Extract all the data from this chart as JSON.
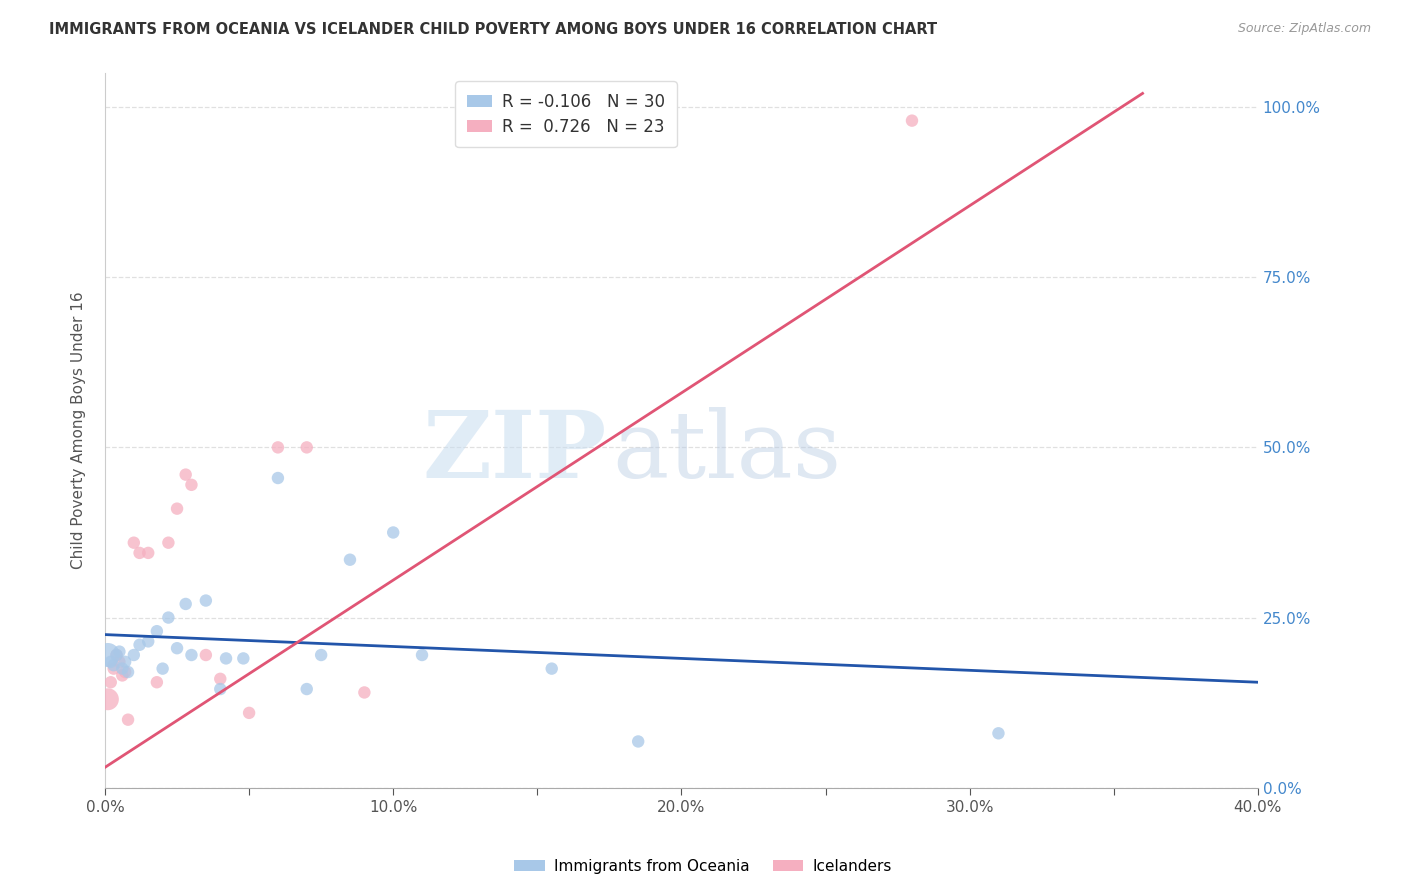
{
  "title": "IMMIGRANTS FROM OCEANIA VS ICELANDER CHILD POVERTY AMONG BOYS UNDER 16 CORRELATION CHART",
  "source": "Source: ZipAtlas.com",
  "ylabel": "Child Poverty Among Boys Under 16",
  "xlim": [
    0.0,
    0.4
  ],
  "ylim": [
    0.0,
    1.05
  ],
  "xtick_vals": [
    0.0,
    0.05,
    0.1,
    0.15,
    0.2,
    0.25,
    0.3,
    0.35,
    0.4
  ],
  "xtick_major_vals": [
    0.0,
    0.1,
    0.2,
    0.3,
    0.4
  ],
  "xtick_labels": [
    "0.0%",
    "",
    "10.0%",
    "",
    "20.0%",
    "",
    "30.0%",
    "",
    "40.0%"
  ],
  "ytick_vals": [
    0.0,
    0.25,
    0.5,
    0.75,
    1.0
  ],
  "ytick_labels_right": [
    "0.0%",
    "25.0%",
    "50.0%",
    "75.0%",
    "100.0%"
  ],
  "grid_color": "#e0e0e0",
  "background_color": "#ffffff",
  "blue_color": "#a8c8e8",
  "pink_color": "#f5afc0",
  "blue_line_color": "#2255aa",
  "pink_line_color": "#e05575",
  "R_blue": -0.106,
  "N_blue": 30,
  "R_pink": 0.726,
  "N_pink": 23,
  "watermark_zip": "ZIP",
  "watermark_atlas": "atlas",
  "legend_label_blue": "Immigrants from Oceania",
  "legend_label_pink": "Icelanders",
  "blue_scatter_x": [
    0.001,
    0.002,
    0.003,
    0.004,
    0.005,
    0.006,
    0.007,
    0.008,
    0.01,
    0.012,
    0.015,
    0.018,
    0.02,
    0.022,
    0.025,
    0.028,
    0.03,
    0.035,
    0.04,
    0.042,
    0.048,
    0.06,
    0.07,
    0.075,
    0.085,
    0.1,
    0.11,
    0.155,
    0.185,
    0.31
  ],
  "blue_scatter_y": [
    0.195,
    0.185,
    0.18,
    0.195,
    0.2,
    0.175,
    0.185,
    0.17,
    0.195,
    0.21,
    0.215,
    0.23,
    0.175,
    0.25,
    0.205,
    0.27,
    0.195,
    0.275,
    0.145,
    0.19,
    0.19,
    0.455,
    0.145,
    0.195,
    0.335,
    0.375,
    0.195,
    0.175,
    0.068,
    0.08
  ],
  "blue_scatter_size": [
    300,
    80,
    80,
    80,
    80,
    80,
    80,
    80,
    80,
    80,
    80,
    80,
    80,
    80,
    80,
    80,
    80,
    80,
    80,
    80,
    80,
    80,
    80,
    80,
    80,
    80,
    80,
    80,
    80,
    80
  ],
  "pink_scatter_x": [
    0.001,
    0.002,
    0.003,
    0.004,
    0.005,
    0.006,
    0.007,
    0.008,
    0.01,
    0.012,
    0.015,
    0.018,
    0.022,
    0.025,
    0.028,
    0.03,
    0.035,
    0.04,
    0.05,
    0.06,
    0.07,
    0.09,
    0.28
  ],
  "pink_scatter_y": [
    0.13,
    0.155,
    0.175,
    0.195,
    0.185,
    0.165,
    0.17,
    0.1,
    0.36,
    0.345,
    0.345,
    0.155,
    0.36,
    0.41,
    0.46,
    0.445,
    0.195,
    0.16,
    0.11,
    0.5,
    0.5,
    0.14,
    0.98
  ],
  "pink_scatter_size": [
    250,
    80,
    80,
    80,
    80,
    80,
    80,
    80,
    80,
    80,
    80,
    80,
    80,
    80,
    80,
    80,
    80,
    80,
    80,
    80,
    80,
    80,
    80
  ],
  "blue_line_x0": 0.0,
  "blue_line_x1": 0.4,
  "blue_line_y0": 0.225,
  "blue_line_y1": 0.155,
  "pink_line_x0": 0.0,
  "pink_line_x1": 0.36,
  "pink_line_y0": 0.03,
  "pink_line_y1": 1.02
}
